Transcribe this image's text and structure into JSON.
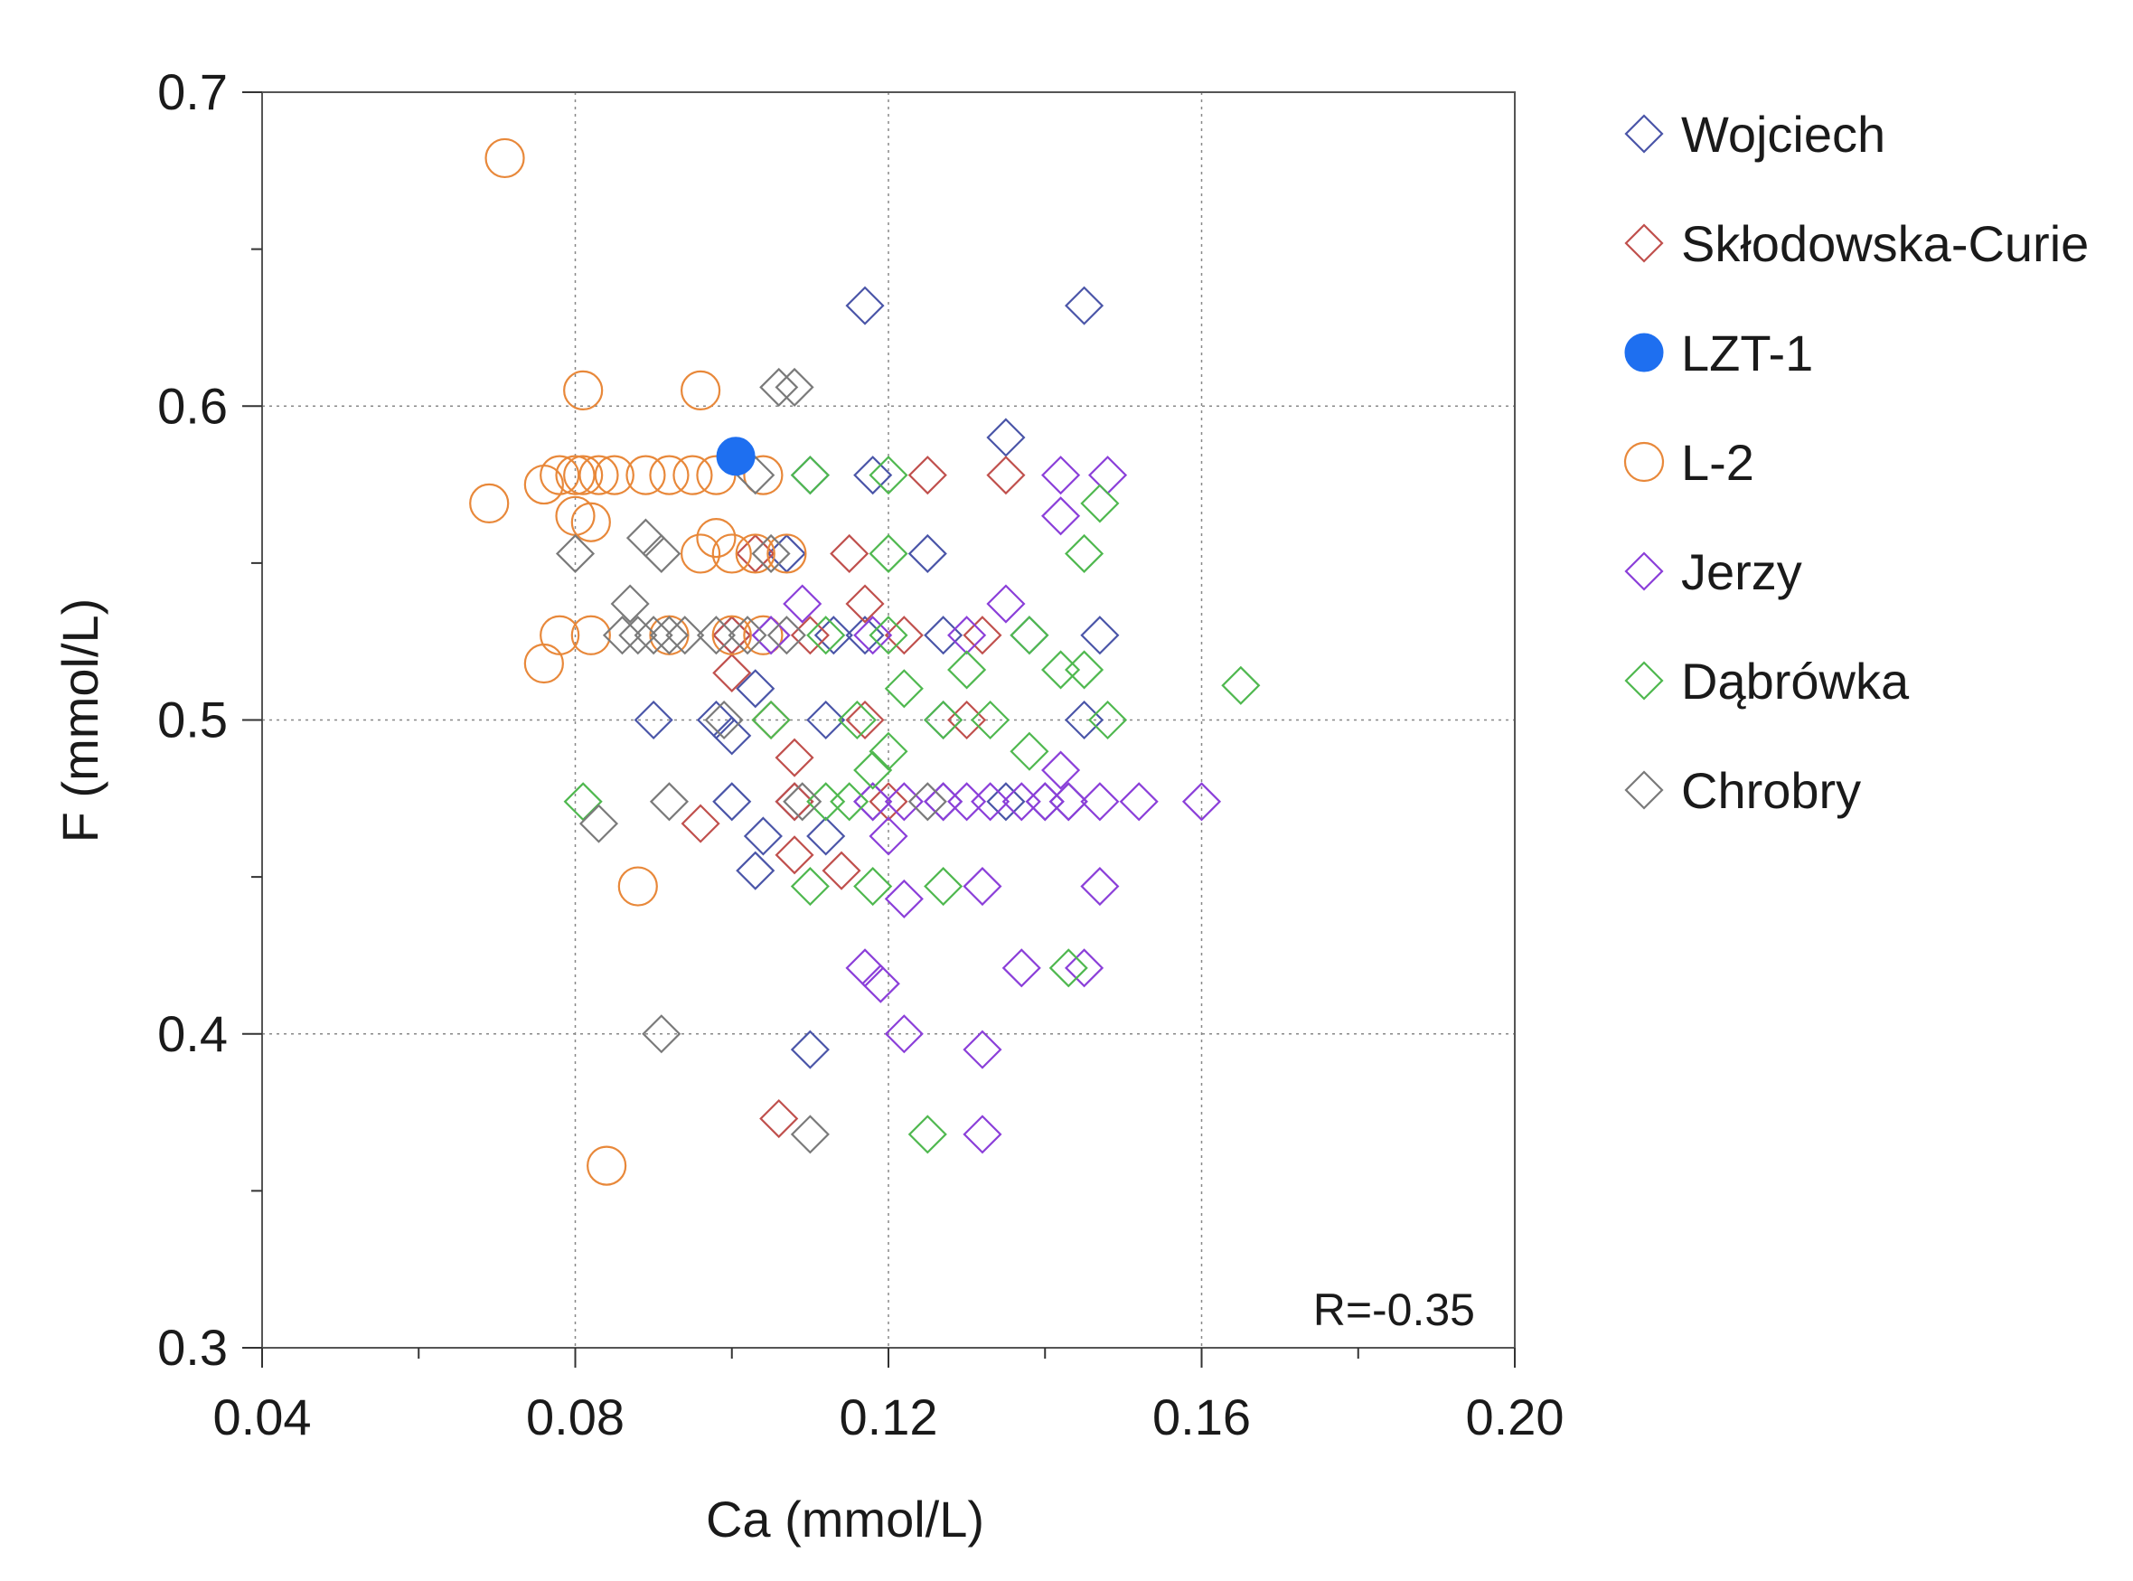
{
  "chart_data": {
    "type": "scatter",
    "xlabel": "Ca (mmol/L)",
    "ylabel": "F (mmol/L)",
    "xlim": [
      0.04,
      0.2
    ],
    "ylim": [
      0.3,
      0.7
    ],
    "x_ticks": [
      "0.04",
      "0.08",
      "0.12",
      "0.16",
      "0.20"
    ],
    "y_ticks": [
      "0.3",
      "0.4",
      "0.5",
      "0.6",
      "0.7"
    ],
    "x_tick_values": [
      0.04,
      0.08,
      0.12,
      0.16,
      0.2
    ],
    "y_tick_values": [
      0.3,
      0.4,
      0.5,
      0.6,
      0.7
    ],
    "x_minor_ticks": [
      0.06,
      0.1,
      0.14,
      0.18
    ],
    "y_minor_ticks": [
      0.35,
      0.45,
      0.55,
      0.65
    ],
    "grid": true,
    "legend_position": "right",
    "annotation": "R=-0.35",
    "series": [
      {
        "name": "Wojciech",
        "marker": "diamond",
        "color": "#4a55a8",
        "points": [
          [
            0.117,
            0.632
          ],
          [
            0.145,
            0.632
          ],
          [
            0.135,
            0.59
          ],
          [
            0.11,
            0.578
          ],
          [
            0.118,
            0.578
          ],
          [
            0.125,
            0.553
          ],
          [
            0.107,
            0.553
          ],
          [
            0.1,
            0.527
          ],
          [
            0.105,
            0.527
          ],
          [
            0.113,
            0.527
          ],
          [
            0.117,
            0.527
          ],
          [
            0.127,
            0.527
          ],
          [
            0.138,
            0.527
          ],
          [
            0.147,
            0.527
          ],
          [
            0.103,
            0.51
          ],
          [
            0.09,
            0.5
          ],
          [
            0.098,
            0.5
          ],
          [
            0.112,
            0.5
          ],
          [
            0.127,
            0.5
          ],
          [
            0.145,
            0.5
          ],
          [
            0.1,
            0.474
          ],
          [
            0.108,
            0.474
          ],
          [
            0.118,
            0.474
          ],
          [
            0.127,
            0.474
          ],
          [
            0.135,
            0.474
          ],
          [
            0.14,
            0.474
          ],
          [
            0.143,
            0.474
          ],
          [
            0.104,
            0.463
          ],
          [
            0.112,
            0.463
          ],
          [
            0.103,
            0.452
          ],
          [
            0.11,
            0.395
          ],
          [
            0.1,
            0.495
          ]
        ]
      },
      {
        "name": "Skłodowska-Curie",
        "marker": "diamond",
        "color": "#c0504d",
        "points": [
          [
            0.125,
            0.578
          ],
          [
            0.135,
            0.578
          ],
          [
            0.115,
            0.553
          ],
          [
            0.103,
            0.553
          ],
          [
            0.117,
            0.537
          ],
          [
            0.1,
            0.527
          ],
          [
            0.11,
            0.527
          ],
          [
            0.122,
            0.527
          ],
          [
            0.132,
            0.527
          ],
          [
            0.1,
            0.515
          ],
          [
            0.105,
            0.5
          ],
          [
            0.117,
            0.5
          ],
          [
            0.13,
            0.5
          ],
          [
            0.108,
            0.488
          ],
          [
            0.108,
            0.474
          ],
          [
            0.12,
            0.474
          ],
          [
            0.096,
            0.467
          ],
          [
            0.108,
            0.457
          ],
          [
            0.114,
            0.452
          ],
          [
            0.106,
            0.373
          ]
        ]
      },
      {
        "name": "LZT-1",
        "marker": "filled-circle",
        "color": "#1e6ff0",
        "points": [
          [
            0.1005,
            0.584
          ]
        ]
      },
      {
        "name": "L-2",
        "marker": "circle",
        "color": "#e8883a",
        "points": [
          [
            0.071,
            0.679
          ],
          [
            0.081,
            0.605
          ],
          [
            0.096,
            0.605
          ],
          [
            0.069,
            0.569
          ],
          [
            0.076,
            0.575
          ],
          [
            0.078,
            0.578
          ],
          [
            0.08,
            0.578
          ],
          [
            0.081,
            0.578
          ],
          [
            0.083,
            0.578
          ],
          [
            0.085,
            0.578
          ],
          [
            0.089,
            0.578
          ],
          [
            0.092,
            0.578
          ],
          [
            0.095,
            0.578
          ],
          [
            0.098,
            0.578
          ],
          [
            0.104,
            0.578
          ],
          [
            0.08,
            0.565
          ],
          [
            0.082,
            0.563
          ],
          [
            0.098,
            0.558
          ],
          [
            0.1,
            0.553
          ],
          [
            0.103,
            0.553
          ],
          [
            0.107,
            0.553
          ],
          [
            0.096,
            0.553
          ],
          [
            0.078,
            0.527
          ],
          [
            0.082,
            0.527
          ],
          [
            0.092,
            0.527
          ],
          [
            0.1,
            0.527
          ],
          [
            0.104,
            0.527
          ],
          [
            0.076,
            0.518
          ],
          [
            0.088,
            0.447
          ],
          [
            0.084,
            0.358
          ]
        ]
      },
      {
        "name": "Jerzy",
        "marker": "diamond",
        "color": "#8b3fd9",
        "points": [
          [
            0.142,
            0.578
          ],
          [
            0.148,
            0.578
          ],
          [
            0.142,
            0.565
          ],
          [
            0.135,
            0.537
          ],
          [
            0.109,
            0.537
          ],
          [
            0.13,
            0.527
          ],
          [
            0.118,
            0.527
          ],
          [
            0.142,
            0.484
          ],
          [
            0.118,
            0.474
          ],
          [
            0.122,
            0.474
          ],
          [
            0.127,
            0.474
          ],
          [
            0.13,
            0.474
          ],
          [
            0.133,
            0.474
          ],
          [
            0.137,
            0.474
          ],
          [
            0.14,
            0.474
          ],
          [
            0.143,
            0.474
          ],
          [
            0.147,
            0.474
          ],
          [
            0.152,
            0.474
          ],
          [
            0.16,
            0.474
          ],
          [
            0.122,
            0.443
          ],
          [
            0.12,
            0.463
          ],
          [
            0.132,
            0.447
          ],
          [
            0.147,
            0.447
          ],
          [
            0.117,
            0.421
          ],
          [
            0.119,
            0.416
          ],
          [
            0.137,
            0.421
          ],
          [
            0.145,
            0.421
          ],
          [
            0.122,
            0.4
          ],
          [
            0.132,
            0.395
          ],
          [
            0.132,
            0.368
          ],
          [
            0.105,
            0.527
          ]
        ]
      },
      {
        "name": "Dąbrówka",
        "marker": "diamond",
        "color": "#4fb84f",
        "points": [
          [
            0.11,
            0.578
          ],
          [
            0.12,
            0.578
          ],
          [
            0.147,
            0.569
          ],
          [
            0.12,
            0.553
          ],
          [
            0.145,
            0.553
          ],
          [
            0.112,
            0.527
          ],
          [
            0.12,
            0.527
          ],
          [
            0.138,
            0.527
          ],
          [
            0.13,
            0.516
          ],
          [
            0.142,
            0.516
          ],
          [
            0.145,
            0.516
          ],
          [
            0.122,
            0.51
          ],
          [
            0.165,
            0.511
          ],
          [
            0.105,
            0.5
          ],
          [
            0.116,
            0.5
          ],
          [
            0.127,
            0.5
          ],
          [
            0.133,
            0.5
          ],
          [
            0.148,
            0.5
          ],
          [
            0.12,
            0.49
          ],
          [
            0.138,
            0.49
          ],
          [
            0.118,
            0.484
          ],
          [
            0.112,
            0.474
          ],
          [
            0.115,
            0.474
          ],
          [
            0.081,
            0.474
          ],
          [
            0.118,
            0.447
          ],
          [
            0.127,
            0.447
          ],
          [
            0.11,
            0.447
          ],
          [
            0.143,
            0.421
          ],
          [
            0.125,
            0.368
          ]
        ]
      },
      {
        "name": "Chrobry",
        "marker": "diamond",
        "color": "#7a7a7a",
        "points": [
          [
            0.106,
            0.606
          ],
          [
            0.108,
            0.606
          ],
          [
            0.103,
            0.578
          ],
          [
            0.08,
            0.553
          ],
          [
            0.089,
            0.558
          ],
          [
            0.091,
            0.553
          ],
          [
            0.105,
            0.553
          ],
          [
            0.087,
            0.537
          ],
          [
            0.086,
            0.527
          ],
          [
            0.088,
            0.527
          ],
          [
            0.09,
            0.527
          ],
          [
            0.092,
            0.527
          ],
          [
            0.094,
            0.527
          ],
          [
            0.098,
            0.527
          ],
          [
            0.102,
            0.527
          ],
          [
            0.107,
            0.527
          ],
          [
            0.099,
            0.5
          ],
          [
            0.092,
            0.474
          ],
          [
            0.083,
            0.467
          ],
          [
            0.109,
            0.474
          ],
          [
            0.125,
            0.474
          ],
          [
            0.091,
            0.4
          ],
          [
            0.11,
            0.368
          ]
        ]
      }
    ]
  }
}
